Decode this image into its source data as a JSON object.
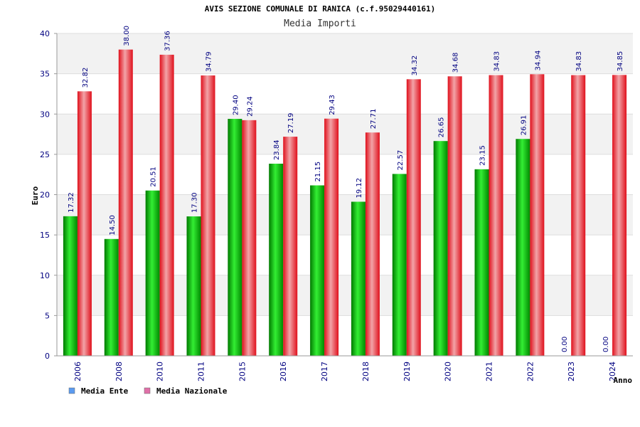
{
  "chart_data": {
    "type": "bar",
    "title": "AVIS SEZIONE COMUNALE DI RANICA (c.f.95029440161)",
    "subtitle": "Media Importi",
    "xlabel": "Anno",
    "ylabel": "Euro",
    "ylim": [
      0,
      40
    ],
    "yticks": [
      0,
      5,
      10,
      15,
      20,
      25,
      30,
      35,
      40
    ],
    "categories": [
      "2006",
      "2008",
      "2010",
      "2011",
      "2015",
      "2016",
      "2017",
      "2018",
      "2019",
      "2020",
      "2021",
      "2022",
      "2023",
      "2024"
    ],
    "series": [
      {
        "name": "Media Ente",
        "color": "#00b000",
        "legend_color": "#5b9bf0",
        "values": [
          17.32,
          14.5,
          20.51,
          17.3,
          29.4,
          23.84,
          21.15,
          19.12,
          22.57,
          26.65,
          23.15,
          26.91,
          0.0,
          0.0
        ],
        "labels": [
          "17.32",
          "14.50",
          "20.51",
          "17.30",
          "29.40",
          "23.84",
          "21.15",
          "19.12",
          "22.57",
          "26.65",
          "23.15",
          "26.91",
          "0.00",
          "0.00"
        ]
      },
      {
        "name": "Media Nazionale",
        "color": "#e8202a",
        "legend_color": "#e070a8",
        "values": [
          32.82,
          38.0,
          37.36,
          34.79,
          29.24,
          27.19,
          29.43,
          27.71,
          34.32,
          34.68,
          34.83,
          34.94,
          34.83,
          34.85
        ],
        "labels": [
          "32.82",
          "38.00",
          "37.36",
          "34.79",
          "29.24",
          "27.19",
          "29.43",
          "27.71",
          "34.32",
          "34.68",
          "34.83",
          "34.94",
          "34.83",
          "34.85"
        ]
      }
    ],
    "grid": true,
    "legend": "bottom-left"
  }
}
